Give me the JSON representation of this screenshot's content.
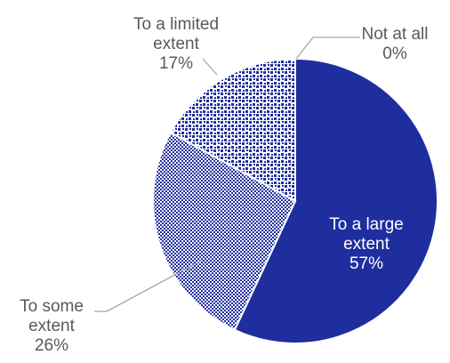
{
  "chart_data": {
    "type": "pie",
    "title": "",
    "slices": [
      {
        "label_lines": [
          "To a large",
          "extent"
        ],
        "value_label": "57%",
        "value": 57,
        "color": "#1f2e9e",
        "pattern": "solid"
      },
      {
        "label_lines": [
          "To some",
          "extent"
        ],
        "value_label": "26%",
        "value": 26,
        "color": "#1f2e9e",
        "pattern": "dense-check"
      },
      {
        "label_lines": [
          "To a limited",
          "extent"
        ],
        "value_label": "17%",
        "value": 17,
        "color": "#1f2e9e",
        "pattern": "sparse-dots"
      },
      {
        "label_lines": [
          "Not at all"
        ],
        "value_label": "0%",
        "value": 0,
        "color": "#1f2e9e",
        "pattern": "solid"
      }
    ],
    "legend": "none"
  }
}
